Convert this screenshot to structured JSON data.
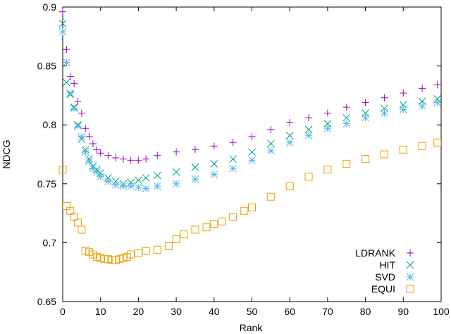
{
  "chart_data": {
    "type": "scatter",
    "title": "",
    "xlabel": "Rank",
    "ylabel": "NDCG",
    "xlim": [
      0,
      100
    ],
    "ylim": [
      0.65,
      0.9
    ],
    "xticks": [
      0,
      10,
      20,
      30,
      40,
      50,
      60,
      70,
      80,
      90,
      100
    ],
    "yticks": [
      0.65,
      0.7,
      0.75,
      0.8,
      0.85,
      0.9
    ],
    "ytick_labels": [
      "0.65",
      "0.7",
      "0.75",
      "0.8",
      "0.85",
      "0.9"
    ],
    "grid": false,
    "legend_position": "bottom-right",
    "series": [
      {
        "name": "LDRANK",
        "marker": "plus",
        "color": "#9400d3",
        "x": [
          0,
          1,
          2,
          3,
          4,
          5,
          6,
          7,
          8,
          9,
          10,
          12,
          14,
          16,
          18,
          20,
          22,
          25,
          30,
          35,
          40,
          45,
          50,
          55,
          60,
          65,
          70,
          75,
          80,
          85,
          90,
          95,
          99
        ],
        "y": [
          0.896,
          0.864,
          0.841,
          0.835,
          0.82,
          0.81,
          0.797,
          0.79,
          0.784,
          0.779,
          0.776,
          0.774,
          0.772,
          0.771,
          0.77,
          0.77,
          0.771,
          0.774,
          0.777,
          0.779,
          0.782,
          0.785,
          0.79,
          0.796,
          0.802,
          0.806,
          0.81,
          0.815,
          0.819,
          0.823,
          0.827,
          0.831,
          0.834
        ]
      },
      {
        "name": "HIT",
        "marker": "cross",
        "color": "#009e73",
        "x": [
          0,
          1,
          2,
          3,
          4,
          5,
          6,
          7,
          8,
          9,
          10,
          12,
          14,
          16,
          18,
          20,
          22,
          25,
          30,
          35,
          40,
          45,
          50,
          55,
          60,
          65,
          70,
          75,
          80,
          85,
          90,
          95,
          99
        ],
        "y": [
          0.886,
          0.836,
          0.826,
          0.815,
          0.8,
          0.788,
          0.779,
          0.771,
          0.765,
          0.762,
          0.759,
          0.755,
          0.752,
          0.75,
          0.751,
          0.753,
          0.755,
          0.757,
          0.76,
          0.764,
          0.767,
          0.771,
          0.777,
          0.784,
          0.791,
          0.796,
          0.801,
          0.806,
          0.81,
          0.814,
          0.817,
          0.82,
          0.822
        ]
      },
      {
        "name": "SVD",
        "marker": "star",
        "color": "#56b4e9",
        "x": [
          0,
          1,
          2,
          3,
          4,
          5,
          6,
          7,
          8,
          9,
          10,
          12,
          14,
          16,
          18,
          20,
          22,
          25,
          30,
          35,
          40,
          45,
          50,
          55,
          60,
          65,
          70,
          75,
          80,
          85,
          90,
          95,
          99
        ],
        "y": [
          0.879,
          0.853,
          0.827,
          0.814,
          0.799,
          0.79,
          0.777,
          0.769,
          0.763,
          0.76,
          0.756,
          0.752,
          0.749,
          0.748,
          0.748,
          0.747,
          0.746,
          0.748,
          0.75,
          0.754,
          0.758,
          0.763,
          0.77,
          0.778,
          0.785,
          0.791,
          0.797,
          0.801,
          0.806,
          0.81,
          0.813,
          0.816,
          0.819
        ]
      },
      {
        "name": "EQUI",
        "marker": "square",
        "color": "#e69f00",
        "x": [
          0,
          1,
          2,
          3,
          4,
          5,
          6,
          7,
          8,
          9,
          10,
          11,
          12,
          13,
          14,
          15,
          16,
          17,
          18,
          20,
          22,
          25,
          28,
          30,
          32,
          35,
          38,
          40,
          42,
          45,
          48,
          50,
          55,
          60,
          65,
          70,
          75,
          80,
          85,
          90,
          95,
          99
        ],
        "y": [
          0.762,
          0.731,
          0.727,
          0.722,
          0.717,
          0.711,
          0.693,
          0.692,
          0.69,
          0.688,
          0.687,
          0.686,
          0.686,
          0.685,
          0.685,
          0.686,
          0.687,
          0.688,
          0.69,
          0.691,
          0.693,
          0.694,
          0.697,
          0.703,
          0.707,
          0.711,
          0.713,
          0.716,
          0.718,
          0.722,
          0.727,
          0.73,
          0.739,
          0.748,
          0.756,
          0.762,
          0.767,
          0.771,
          0.775,
          0.779,
          0.782,
          0.785
        ]
      }
    ]
  }
}
